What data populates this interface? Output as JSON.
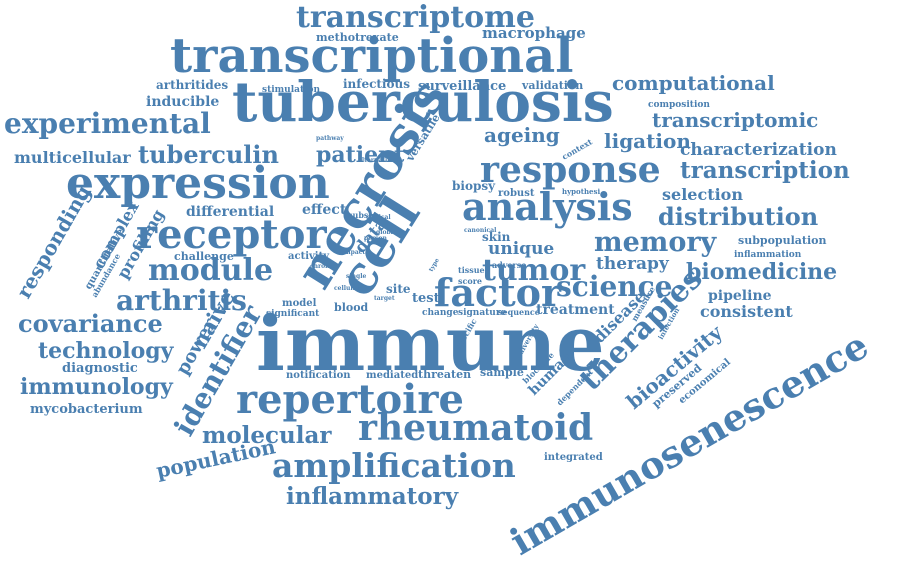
{
  "color": "#4a7fb0",
  "words": [
    "transcriptome",
    "methotrexate",
    "macrophage",
    "transcriptional",
    "arthritides",
    "stimulation",
    "infectious",
    "surveillance",
    "validation",
    "computational",
    "inducible",
    "tuberculosis",
    "composition",
    "experimental",
    "transcriptomic",
    "pathway",
    "patient",
    "versatile",
    "ageing",
    "ligation",
    "characterization",
    "multicellular",
    "tuberculin",
    "alternative",
    "context",
    "response",
    "transcription",
    "expression",
    "necrosis",
    "biopsy",
    "robust",
    "hypothesi",
    "selection",
    "responding",
    "complex",
    "profiling",
    "quantitative",
    "differential",
    "effect",
    "subset",
    "clinical",
    "analysis",
    "distribution",
    "receptor",
    "data",
    "canonical",
    "skin",
    "unique",
    "memory",
    "subpopulation",
    "global",
    "person",
    "inflammation",
    "challenge",
    "activity",
    "impact",
    "cell",
    "tumor",
    "therapy",
    "biomedicine",
    "module",
    "chronic",
    "tissue",
    "adverse",
    "type",
    "abundance",
    "arthritis",
    "factor",
    "science",
    "cellular",
    "single",
    "site",
    "test",
    "score",
    "pipeline",
    "covariance",
    "model",
    "blood",
    "target",
    "treatment",
    "consistent",
    "naive",
    "significant",
    "change",
    "signature",
    "sequence",
    "measure",
    "disease",
    "therapies",
    "technology",
    "power",
    "diagnostic",
    "immune",
    "specific",
    "diversity",
    "infection",
    "bioactivity",
    "identifier",
    "immunology",
    "notification",
    "mediated",
    "threaten",
    "sample",
    "blockade",
    "human",
    "preserved",
    "economical",
    "dependent",
    "mycobacterium",
    "repertoire",
    "immunosenescence",
    "molecular",
    "rheumatoid",
    "integrated",
    "population",
    "amplification",
    "inflammatory"
  ]
}
